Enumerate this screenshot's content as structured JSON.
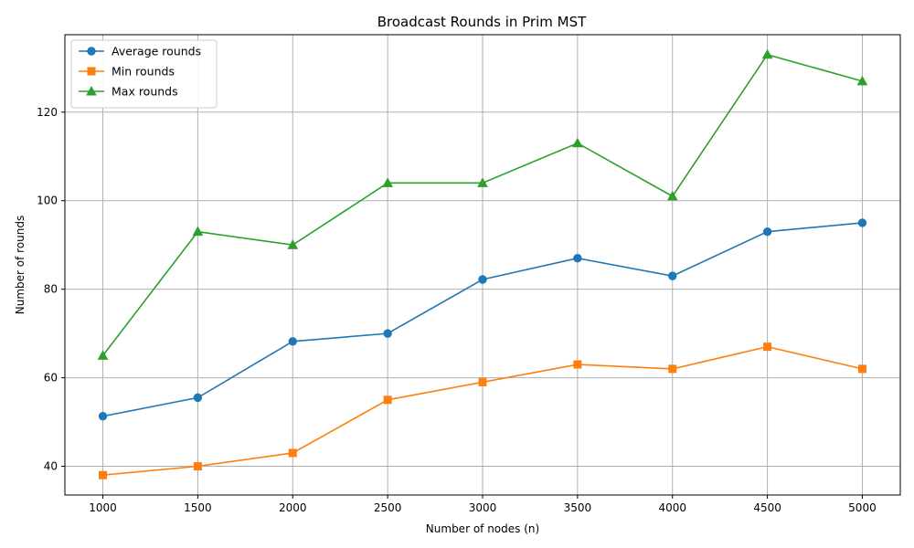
{
  "chart_data": {
    "type": "line",
    "title": "Broadcast Rounds in Prim MST",
    "xlabel": "Number of nodes (n)",
    "ylabel": "Number of rounds",
    "x": [
      1000,
      1500,
      2000,
      2500,
      3000,
      3500,
      4000,
      4500,
      5000
    ],
    "xticks": [
      "1000",
      "1500",
      "2000",
      "2500",
      "3000",
      "3500",
      "4000",
      "4500",
      "5000"
    ],
    "yticks": [
      40,
      60,
      80,
      100,
      120
    ],
    "xlim": [
      800,
      5200
    ],
    "ylim": [
      33.5,
      137.5
    ],
    "grid": true,
    "legend_position": "top-left",
    "series": [
      {
        "name": "Average rounds",
        "marker": "circle",
        "color": "#1f77b4",
        "values": [
          51.3,
          55.5,
          68.2,
          70.0,
          82.2,
          87.0,
          83.0,
          93.0,
          95.0
        ]
      },
      {
        "name": "Min rounds",
        "marker": "square",
        "color": "#ff7f0e",
        "values": [
          38,
          40,
          43,
          55,
          59,
          63,
          62,
          67,
          62
        ]
      },
      {
        "name": "Max rounds",
        "marker": "triangle",
        "color": "#2ca02c",
        "values": [
          65,
          93,
          90,
          104,
          104,
          113,
          101,
          133,
          127
        ]
      }
    ]
  }
}
